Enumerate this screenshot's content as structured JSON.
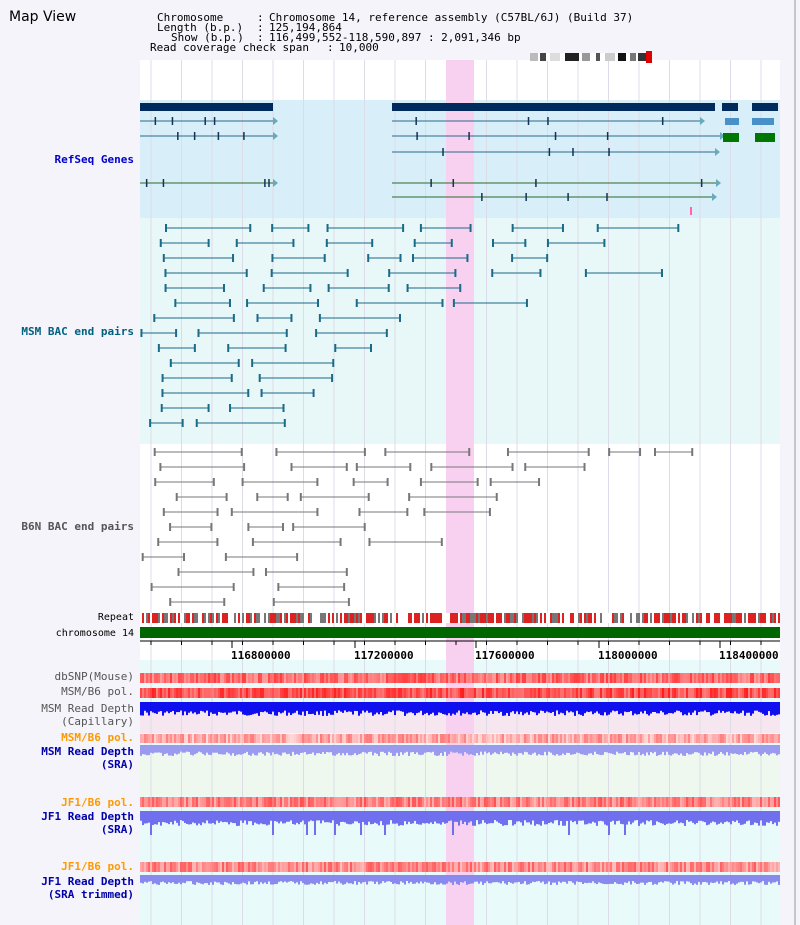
{
  "title": "Map View",
  "header": {
    "chromosome_key": "Chromosome",
    "chromosome_value": "Chromosome 14, reference assembly (C57BL/6J) (Build 37)",
    "length_key": "Length (b.p.)",
    "length_value": "125,194,864",
    "show_key": "Show (b.p.)",
    "show_value": "116,499,552-118,590,897 : 2,091,346 bp",
    "coverage_key": "Read coverage check span",
    "coverage_value": "10,000"
  },
  "tracks": {
    "refseq": "RefSeq Genes",
    "msm_bac": "MSM BAC end pairs",
    "b6n_bac": "B6N BAC end pairs",
    "repeat": "Repeat",
    "chromosome": "chromosome 14",
    "dbsnp": "dbSNP(Mouse)",
    "msm_b6_pol_1": "MSM/B6 pol.",
    "msm_depth_cap_1": "MSM Read Depth",
    "msm_depth_cap_2": "(Capillary)",
    "msm_b6_pol_2": "MSM/B6 pol.",
    "msm_depth_sra_1": "MSM Read Depth",
    "msm_depth_sra_2": "(SRA)",
    "jf1_b6_pol_1": "JF1/B6 pol.",
    "jf1_depth_sra_1": "JF1 Read Depth",
    "jf1_depth_sra_2": "(SRA)",
    "jf1_b6_pol_2": "JF1/B6 pol.",
    "jf1_depth_trim_1": "JF1 Read Depth",
    "jf1_depth_trim_2": "(SRA trimmed)"
  },
  "axis": {
    "ticks": [
      "116800000",
      "117200000",
      "117600000",
      "118000000",
      "118400000"
    ]
  },
  "colors": {
    "refseq_label": "#0000cc",
    "msm_label": "#006080",
    "b6n_label": "#555555",
    "pol_label": "#ff9900",
    "depth_label": "#0000aa",
    "highlight": "#f8d0f0",
    "chrom_bar": "#006600",
    "gene_dark": "#002b5c"
  }
}
